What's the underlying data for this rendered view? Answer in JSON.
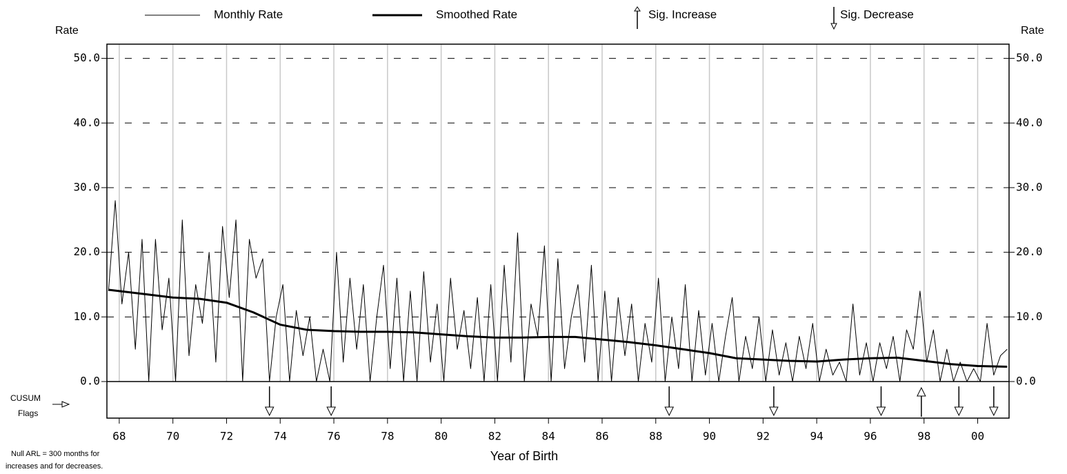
{
  "chart_data": {
    "type": "line",
    "x_label": "Year of Birth",
    "y_label": "Rate",
    "y2_label": "Rate",
    "cusum_label": [
      "CUSUM",
      "Flags"
    ],
    "note": [
      "Null ARL = 300 months for",
      "increases and for decreases."
    ],
    "xlim": [
      1967.54,
      2001.17
    ],
    "xticks": [
      {
        "value": 1968,
        "label": "68"
      },
      {
        "value": 1970,
        "label": "70"
      },
      {
        "value": 1972,
        "label": "72"
      },
      {
        "value": 1974,
        "label": "74"
      },
      {
        "value": 1976,
        "label": "76"
      },
      {
        "value": 1978,
        "label": "78"
      },
      {
        "value": 1980,
        "label": "80"
      },
      {
        "value": 1982,
        "label": "82"
      },
      {
        "value": 1984,
        "label": "84"
      },
      {
        "value": 1986,
        "label": "86"
      },
      {
        "value": 1988,
        "label": "88"
      },
      {
        "value": 1990,
        "label": "90"
      },
      {
        "value": 1992,
        "label": "92"
      },
      {
        "value": 1994,
        "label": "94"
      },
      {
        "value": 1996,
        "label": "96"
      },
      {
        "value": 1998,
        "label": "98"
      },
      {
        "value": 2000,
        "label": "00"
      }
    ],
    "ylim": [
      0,
      52.2
    ],
    "yticks": [
      {
        "value": 0,
        "label": "0.0"
      },
      {
        "value": 10,
        "label": "10.0"
      },
      {
        "value": 20,
        "label": "20.0"
      },
      {
        "value": 30,
        "label": "30.0"
      },
      {
        "value": 40,
        "label": "40.0"
      },
      {
        "value": 50,
        "label": "50.0"
      }
    ],
    "y2lim": [
      0,
      52.2
    ],
    "y2ticks": [
      {
        "value": 0,
        "label": "0.0"
      },
      {
        "value": 10,
        "label": "10.0"
      },
      {
        "value": 20,
        "label": "20.0"
      },
      {
        "value": 30,
        "label": "30.0"
      },
      {
        "value": 40,
        "label": "40.0"
      },
      {
        "value": 50,
        "label": "50.0"
      }
    ],
    "grid": true,
    "series": [
      {
        "name": "Monthly Rate",
        "color": "#000000",
        "x": [
          1967.6,
          1967.85,
          1968.1,
          1968.35,
          1968.6,
          1968.85,
          1969.1,
          1969.35,
          1969.6,
          1969.85,
          1970.1,
          1970.35,
          1970.6,
          1970.85,
          1971.1,
          1971.35,
          1971.6,
          1971.85,
          1972.1,
          1972.35,
          1972.6,
          1972.85,
          1973.1,
          1973.35,
          1973.6,
          1973.85,
          1974.1,
          1974.35,
          1974.6,
          1974.85,
          1975.1,
          1975.35,
          1975.6,
          1975.85,
          1976.1,
          1976.35,
          1976.6,
          1976.85,
          1977.1,
          1977.35,
          1977.6,
          1977.85,
          1978.1,
          1978.35,
          1978.6,
          1978.85,
          1979.1,
          1979.35,
          1979.6,
          1979.85,
          1980.1,
          1980.35,
          1980.6,
          1980.85,
          1981.1,
          1981.35,
          1981.6,
          1981.85,
          1982.1,
          1982.35,
          1982.6,
          1982.85,
          1983.1,
          1983.35,
          1983.6,
          1983.85,
          1984.1,
          1984.35,
          1984.6,
          1984.85,
          1985.1,
          1985.35,
          1985.6,
          1985.85,
          1986.1,
          1986.35,
          1986.6,
          1986.85,
          1987.1,
          1987.35,
          1987.6,
          1987.85,
          1988.1,
          1988.35,
          1988.6,
          1988.85,
          1989.1,
          1989.35,
          1989.6,
          1989.85,
          1990.1,
          1990.35,
          1990.6,
          1990.85,
          1991.1,
          1991.35,
          1991.6,
          1991.85,
          1992.1,
          1992.35,
          1992.6,
          1992.85,
          1993.1,
          1993.35,
          1993.6,
          1993.85,
          1994.1,
          1994.35,
          1994.6,
          1994.85,
          1995.1,
          1995.35,
          1995.6,
          1995.85,
          1996.1,
          1996.35,
          1996.6,
          1996.85,
          1997.1,
          1997.35,
          1997.6,
          1997.85,
          1998.1,
          1998.35,
          1998.6,
          1998.85,
          1999.1,
          1999.35,
          1999.6,
          1999.85,
          2000.1,
          2000.35,
          2000.6,
          2000.85,
          2001.1
        ],
        "values": [
          14,
          28,
          12,
          20,
          5,
          22,
          0,
          22,
          8,
          16,
          0,
          25,
          4,
          15,
          9,
          20,
          3,
          24,
          13,
          25,
          0,
          22,
          16,
          19,
          0,
          10,
          15,
          0,
          11,
          4,
          10,
          0,
          5,
          0,
          20,
          3,
          16,
          5,
          15,
          0,
          10,
          18,
          2,
          16,
          0,
          14,
          0,
          17,
          3,
          12,
          0,
          16,
          5,
          11,
          2,
          13,
          0,
          15,
          0,
          18,
          3,
          23,
          0,
          12,
          7,
          21,
          0,
          19,
          2,
          10,
          15,
          3,
          18,
          0,
          14,
          0,
          13,
          4,
          12,
          0,
          9,
          3,
          16,
          0,
          10,
          2,
          15,
          0,
          11,
          1,
          9,
          0,
          7,
          13,
          0,
          7,
          2,
          10,
          0,
          8,
          1,
          6,
          0,
          7,
          2,
          9,
          0,
          5,
          1,
          3,
          0,
          12,
          1,
          6,
          0,
          6,
          2,
          7,
          0,
          8,
          5,
          14,
          3,
          8,
          0,
          5,
          0,
          3,
          0,
          2,
          0,
          9,
          1,
          4,
          5
        ]
      },
      {
        "name": "Smoothed Rate",
        "color": "#000000",
        "x": [
          1967.6,
          1969,
          1970,
          1971,
          1972,
          1973,
          1974,
          1975,
          1976,
          1977,
          1978,
          1979,
          1980,
          1981,
          1982,
          1983,
          1984,
          1985,
          1986,
          1987,
          1988,
          1989,
          1990,
          1991,
          1992,
          1993,
          1994,
          1995,
          1996,
          1997,
          1998,
          1999,
          2000,
          2001.1
        ],
        "values": [
          14.2,
          13.5,
          13.0,
          12.8,
          12.2,
          10.7,
          8.8,
          8.0,
          7.8,
          7.7,
          7.7,
          7.6,
          7.3,
          7.0,
          6.8,
          6.8,
          6.9,
          6.9,
          6.5,
          6.1,
          5.6,
          5.0,
          4.4,
          3.6,
          3.4,
          3.2,
          3.1,
          3.4,
          3.6,
          3.7,
          3.2,
          2.7,
          2.4,
          2.3
        ]
      },
      {
        "name": "Sig. Increase",
        "color": "#000000",
        "x": [
          1997.9
        ]
      },
      {
        "name": "Sig. Decrease",
        "color": "#000000",
        "x": [
          1973.6,
          1975.9,
          1988.5,
          1992.4,
          1996.4,
          1999.3,
          2000.6
        ]
      }
    ]
  }
}
